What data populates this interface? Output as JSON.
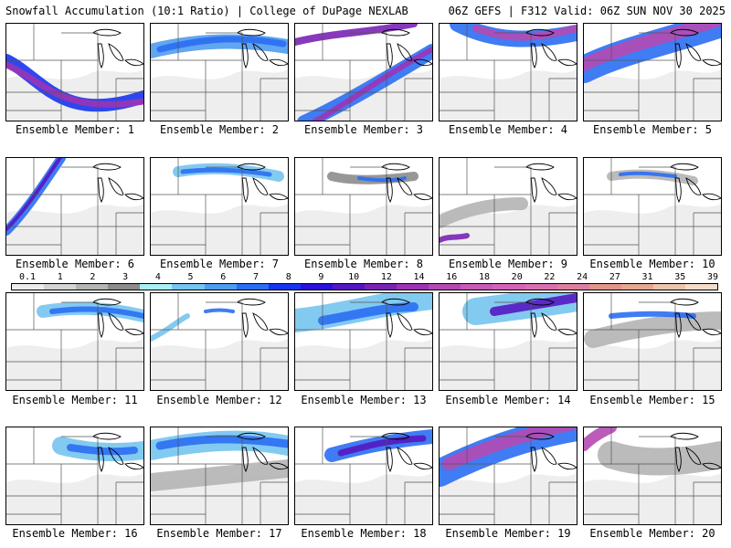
{
  "header": {
    "title": "Snowfall Accumulation (10:1 Ratio) | College of DuPage NEXLAB",
    "run_info": "06Z GEFS | F312 Valid: 06Z SUN NOV 30 2025"
  },
  "colorbar": {
    "labels": [
      "0.1",
      "1",
      "2",
      "3",
      "4",
      "5",
      "6",
      "7",
      "8",
      "9",
      "10",
      "12",
      "14",
      "16",
      "18",
      "20",
      "22",
      "24",
      "27",
      "31",
      "35",
      "39"
    ],
    "colors": [
      "#ececec",
      "#d4d4d4",
      "#b4b4b4",
      "#8c8c8c",
      "#a8eef4",
      "#76c4f0",
      "#4f9cf0",
      "#2b6ef2",
      "#1634f0",
      "#2a10d8",
      "#5418c0",
      "#7a24b4",
      "#9c34b4",
      "#b44ab4",
      "#c85ab8",
      "#d464b8",
      "#d870b0",
      "#dc80a0",
      "#e0948c",
      "#e4a890",
      "#ecc4b0",
      "#f4dcc8"
    ]
  },
  "panels": [
    {
      "label": "Ensemble Member: 1"
    },
    {
      "label": "Ensemble Member: 2"
    },
    {
      "label": "Ensemble Member: 3"
    },
    {
      "label": "Ensemble Member: 4"
    },
    {
      "label": "Ensemble Member: 5"
    },
    {
      "label": "Ensemble Member: 6"
    },
    {
      "label": "Ensemble Member: 7"
    },
    {
      "label": "Ensemble Member: 8"
    },
    {
      "label": "Ensemble Member: 9"
    },
    {
      "label": "Ensemble Member: 10"
    },
    {
      "label": "Ensemble Member: 11"
    },
    {
      "label": "Ensemble Member: 12"
    },
    {
      "label": "Ensemble Member: 13"
    },
    {
      "label": "Ensemble Member: 14"
    },
    {
      "label": "Ensemble Member: 15"
    },
    {
      "label": "Ensemble Member: 16"
    },
    {
      "label": "Ensemble Member: 17"
    },
    {
      "label": "Ensemble Member: 18"
    },
    {
      "label": "Ensemble Member: 19"
    },
    {
      "label": "Ensemble Member: 20"
    }
  ]
}
